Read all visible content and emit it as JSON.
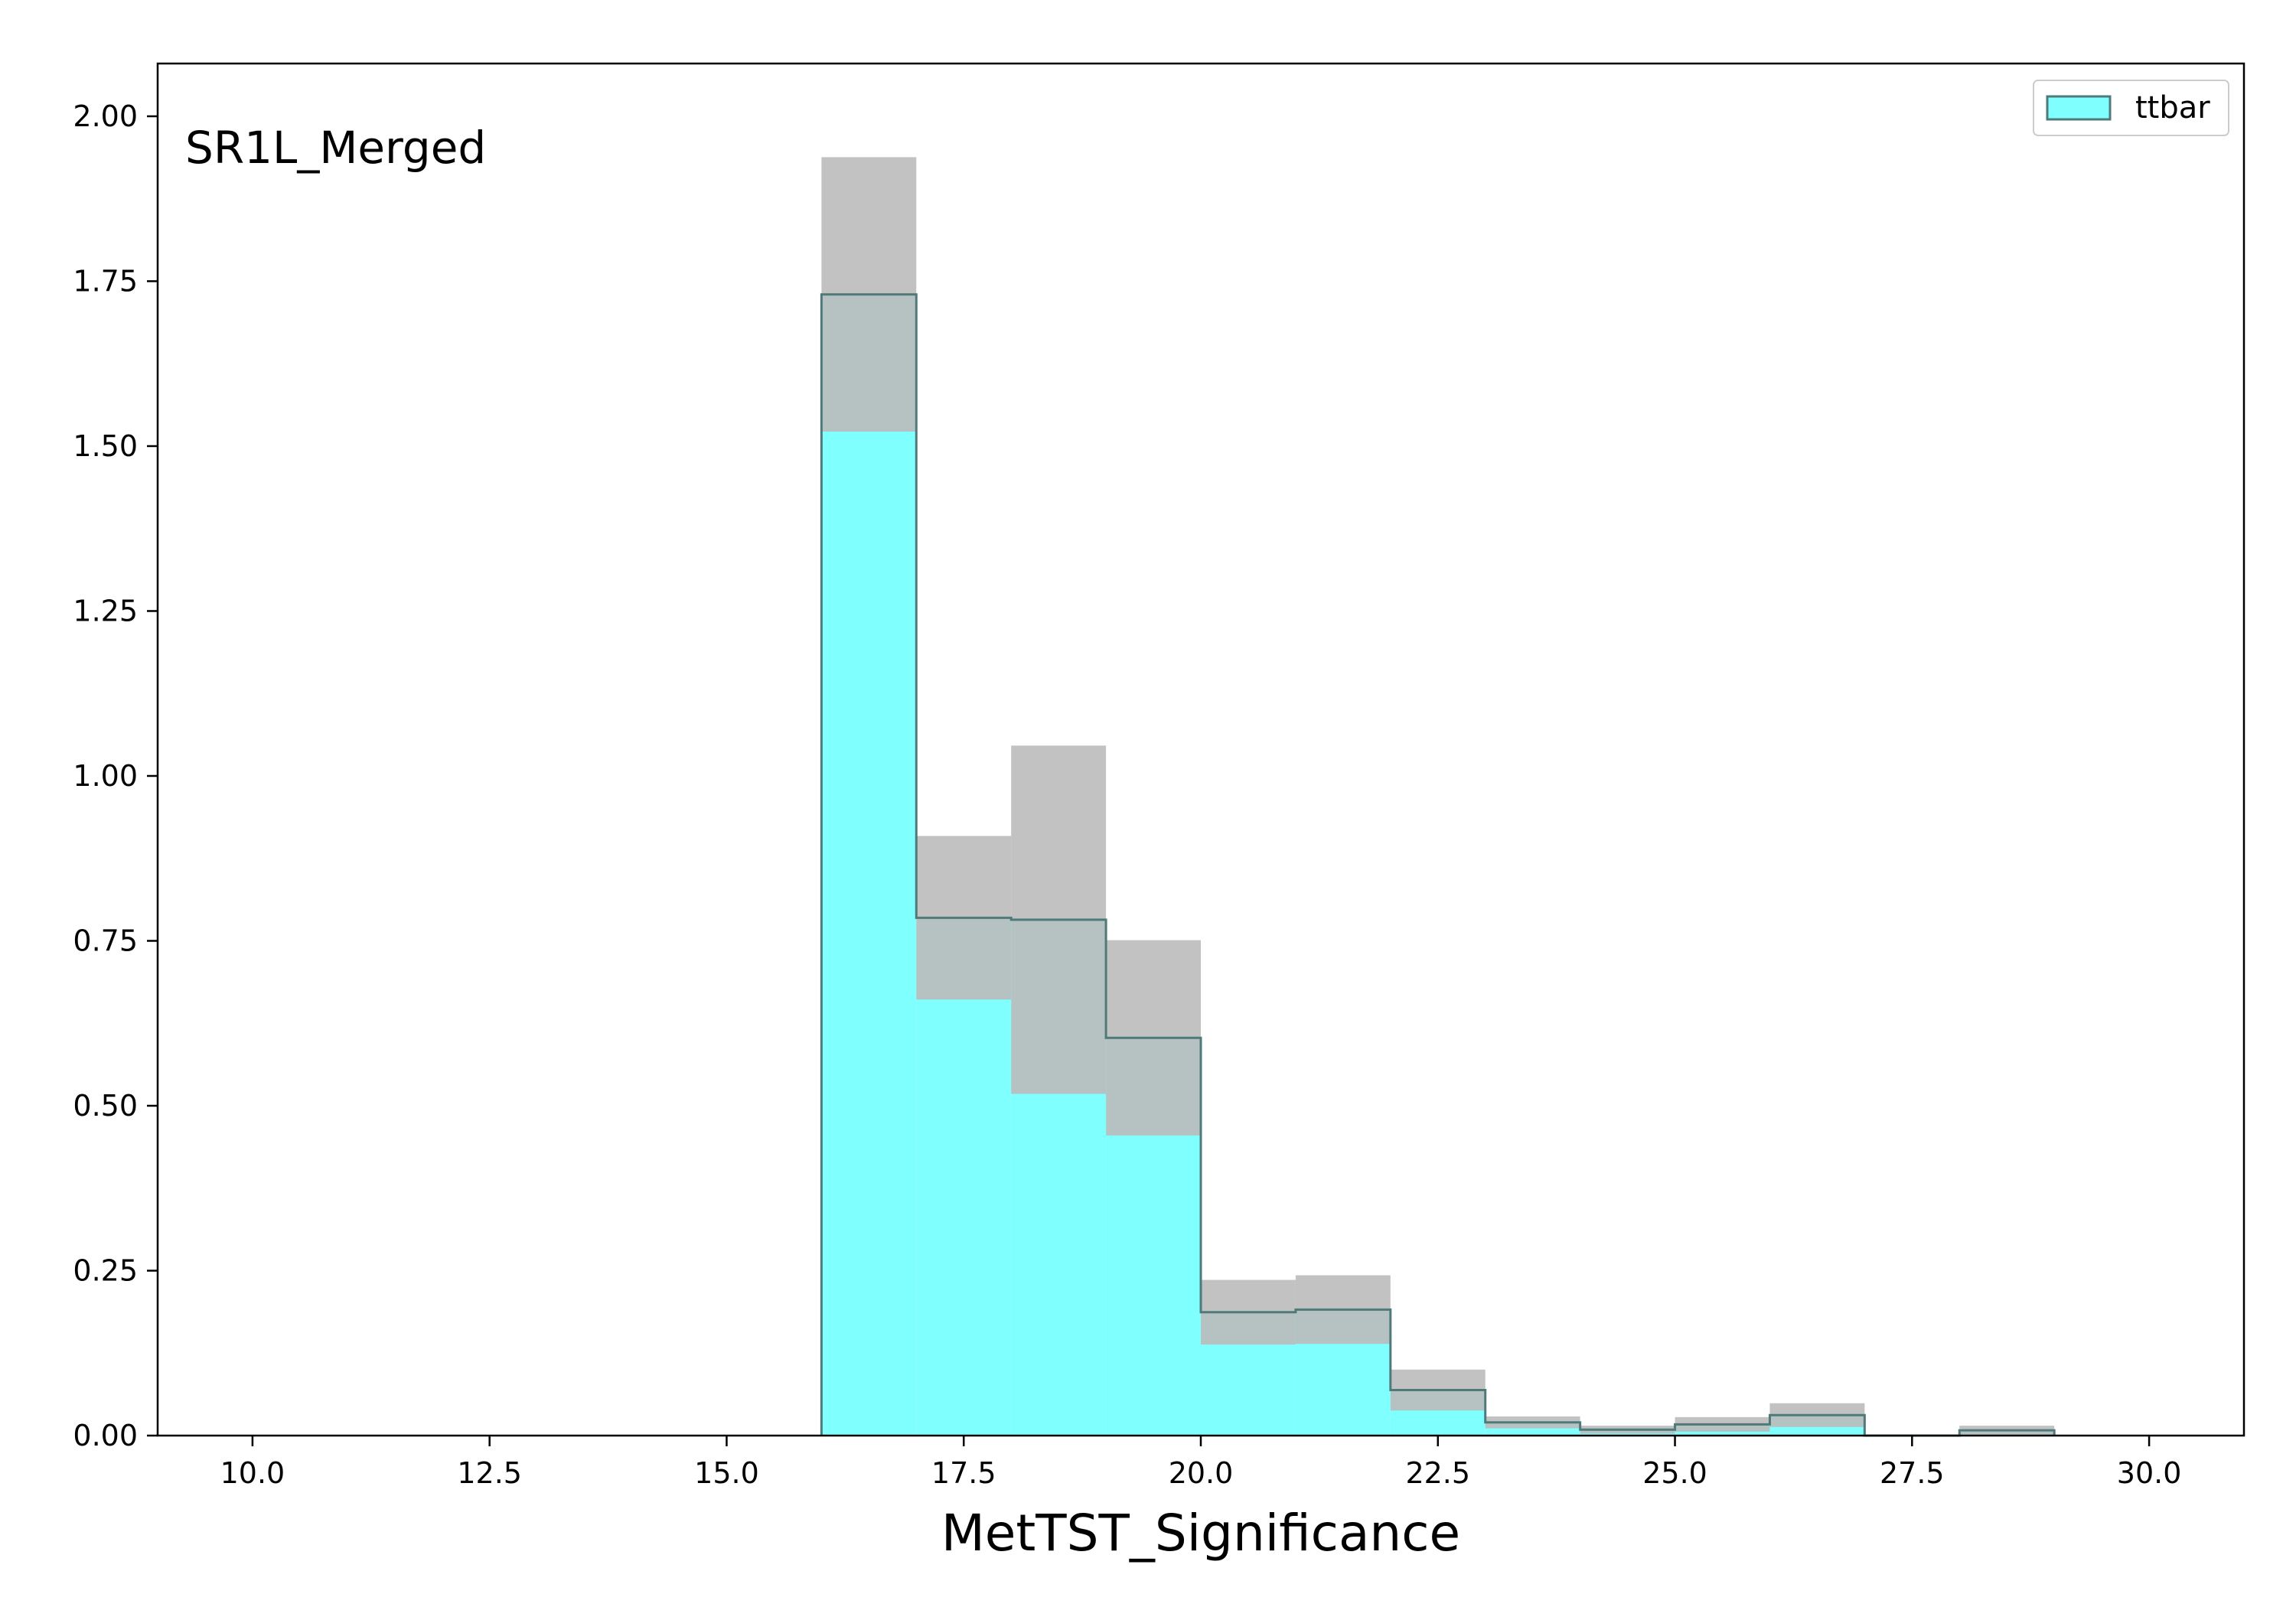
{
  "chart_data": {
    "type": "bar",
    "subtype": "step-histogram",
    "annotation": "SR1L_Merged",
    "xlabel": "MetTST_Significance",
    "ylabel": "",
    "xlim": [
      9.0,
      31.0
    ],
    "ylim": [
      0.0,
      2.08
    ],
    "x_ticks": [
      "10.0",
      "12.5",
      "15.0",
      "17.5",
      "20.0",
      "22.5",
      "25.0",
      "27.5",
      "30.0"
    ],
    "x_tick_values": [
      10.0,
      12.5,
      15.0,
      17.5,
      20.0,
      22.5,
      25.0,
      27.5,
      30.0
    ],
    "y_ticks": [
      "0.00",
      "0.25",
      "0.50",
      "0.75",
      "1.00",
      "1.25",
      "1.50",
      "1.75",
      "2.00"
    ],
    "y_tick_values": [
      0.0,
      0.25,
      0.5,
      0.75,
      1.0,
      1.25,
      1.5,
      1.75,
      2.0
    ],
    "bin_edges": [
      10,
      11,
      12,
      13,
      14,
      15,
      16,
      17,
      18,
      19,
      20,
      21,
      22,
      23,
      24,
      25,
      26,
      27,
      28,
      29,
      30
    ],
    "series": [
      {
        "name": "ttbar",
        "color": "#80ffff",
        "edge_color": "#4f7a7a",
        "values": [
          0,
          0,
          0,
          0,
          0,
          0,
          1.73,
          0.785,
          0.782,
          0.603,
          0.187,
          0.191,
          0.069,
          0.02,
          0.009,
          0.017,
          0.031,
          0,
          0.008,
          0
        ],
        "uncertainty": [
          0,
          0,
          0,
          0,
          0,
          0,
          0.208,
          0.124,
          0.264,
          0.148,
          0.049,
          0.052,
          0.031,
          0.009,
          0.006,
          0.011,
          0.018,
          0,
          0.007,
          0
        ]
      }
    ],
    "uncertainty_color": "#bbbbbb",
    "legend": {
      "position": "top-right",
      "entries": [
        "ttbar"
      ]
    },
    "grid": false
  }
}
